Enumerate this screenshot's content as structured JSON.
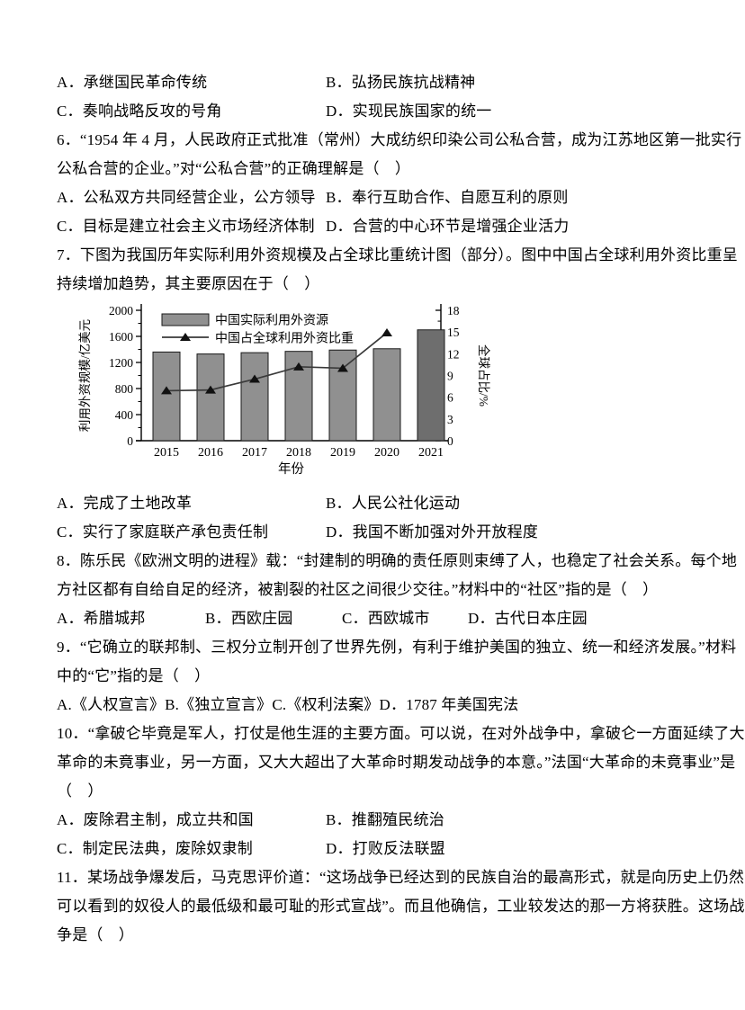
{
  "doc": {
    "q5": {
      "options": [
        [
          "A．承继国民革命传统",
          "B．弘扬民族抗战精神"
        ],
        [
          "C．奏响战略反攻的号角",
          "D．实现民族国家的统一"
        ]
      ]
    },
    "q6": {
      "lines": [
        "6．“1954 年 4 月，人民政府正式批准（常州）大成纺织印染公司公私合营，成为江苏地区第一批实行",
        "公私合营的企业。”对“公私合营”的正确理解是（　）"
      ],
      "options": [
        [
          "A．公私双方共同经营企业，公方领导",
          "B．奉行互助合作、自愿互利的原则"
        ],
        [
          "C．目标是建立社会主义市场经济体制",
          "D．合营的中心环节是增强企业活力"
        ]
      ]
    },
    "q7": {
      "lines": [
        "7．下图为我国历年实际利用外资规模及占全球比重统计图（部分）。图中中国占全球利用外资比重呈",
        "持续增加趋势，其主要原因在于（　）"
      ],
      "options": [
        [
          "A．完成了土地改革",
          "B．人民公社化运动"
        ],
        [
          "C．实行了家庭联产承包责任制",
          "D．我国不断加强对外开放程度"
        ]
      ]
    },
    "q8": {
      "lines": [
        "8．陈乐民《欧洲文明的进程》载：“封建制的明确的责任原则束缚了人，也稳定了社会关系。每个地",
        "方社区都有自给自足的经济，被割裂的社区之间很少交往。”材料中的“社区”指的是（　）"
      ],
      "options": [
        "A．希腊城邦",
        "B．西欧庄园",
        "C．西欧城市",
        "D．古代日本庄园"
      ]
    },
    "q9": {
      "lines": [
        "9．“它确立的联邦制、三权分立制开创了世界先例，有利于维护美国的独立、统一和经济发展。”材料",
        "中的“它”指的是（　）"
      ],
      "options_line": "A.《人权宣言》B.《独立宣言》C.《权利法案》D．1787 年美国宪法"
    },
    "q10": {
      "lines": [
        "10．“拿破仑毕竟是军人，打仗是他生涯的主要方面。可以说，在对外战争中，拿破仑一方面延续了大",
        "革命的未竟事业，另一方面，又大大超出了大革命时期发动战争的本意。”法国“大革命的未竟事业”是",
        "（　）"
      ],
      "options": [
        [
          "A．废除君主制，成立共和国",
          "B．推翻殖民统治"
        ],
        [
          "C．制定民法典，废除奴隶制",
          "D．打败反法联盟"
        ]
      ]
    },
    "q11": {
      "lines": [
        "11．某场战争爆发后，马克思评价道：“这场战争已经达到的民族自治的最高形式，就是向历史上仍然",
        "可以看到的奴役人的最低级和最可耻的形式宣战”。而且他确信，工业较发达的那一方将获胜。这场战",
        "争是（　）"
      ]
    }
  },
  "chart_data": {
    "type": "bar+line",
    "categories": [
      "2015",
      "2016",
      "2017",
      "2018",
      "2019",
      "2020",
      "2021"
    ],
    "series": [
      {
        "name": "中国实际利用外资源",
        "type": "bar",
        "axis": "left",
        "values": [
          1360,
          1330,
          1350,
          1370,
          1390,
          1410,
          1700
        ]
      },
      {
        "name": "中国占全球利用外资比重",
        "type": "line",
        "axis": "right",
        "values": [
          6.9,
          7.0,
          8.5,
          10.2,
          10.0,
          14.9,
          null
        ]
      }
    ],
    "xlabel": "年份",
    "ylabel_left": "利用外资规模/亿美元",
    "ylabel_right": "全球占比/%",
    "ylim_left": [
      0,
      2000
    ],
    "yticks_left": [
      0,
      400,
      800,
      1200,
      1600,
      2000
    ],
    "ylim_right": [
      0,
      18
    ],
    "yticks_right": [
      0,
      3,
      6,
      9,
      12,
      15,
      18
    ],
    "legend_position": "top-left",
    "grid": false,
    "colors": {
      "bar": "#909090",
      "bar_2021": "#6e6e6e",
      "line": "#3a3a3a",
      "axis": "#000000"
    }
  }
}
